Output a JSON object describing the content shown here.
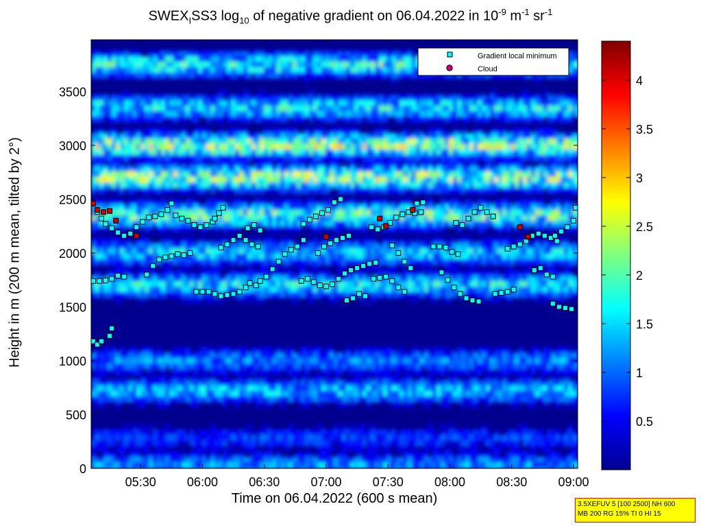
{
  "chart_data": {
    "type": "heatmap",
    "title": {
      "part1": "SWEX",
      "part1_sub": "I",
      "part2": "SS3 log",
      "part2_sub": "10",
      "part3": " of negative gradient on 06.04.2022 in 10",
      "exp1": "-9",
      "part4": " m",
      "exp2": "-1",
      "part5": " sr",
      "exp3": "-1"
    },
    "xlabel": "Time on 06.04.2022 (600 s mean)",
    "ylabel": "Height in m (200 m mean, tilted by 2°)",
    "x_ticks": [
      "05:30",
      "06:00",
      "06:30",
      "07:00",
      "07:30",
      "08:00",
      "08:30",
      "09:00"
    ],
    "x_tick_minutes": [
      330,
      360,
      390,
      420,
      450,
      480,
      510,
      540
    ],
    "xlim_minutes": [
      306,
      542
    ],
    "y_ticks": [
      0,
      500,
      1000,
      1500,
      2000,
      2500,
      3000,
      3500
    ],
    "ylim": [
      0,
      3980
    ],
    "colorbar": {
      "ticks": [
        0.5,
        1,
        1.5,
        2,
        2.5,
        3,
        3.5,
        4
      ],
      "tick_labels": [
        "0.5",
        "1",
        "1.5",
        "2",
        "2.5",
        "3",
        "3.5",
        "4"
      ],
      "range": [
        0,
        4.4
      ],
      "colormap": "jet"
    },
    "legend": {
      "placement": "top-right",
      "entries": [
        {
          "label": "Gradient local minimum",
          "color": "#00ffff",
          "marker": "square"
        },
        {
          "label": "Cloud",
          "color": "#ff0000",
          "marker": "circle"
        }
      ]
    },
    "field_bands": [
      {
        "height_m": 30,
        "level": 1.2
      },
      {
        "height_m": 280,
        "level": 0.8
      },
      {
        "height_m": 720,
        "level": 1.4
      },
      {
        "height_m": 1000,
        "level": 1.15
      },
      {
        "height_m": 1700,
        "level": 1.6
      },
      {
        "height_m": 2000,
        "level": 1.5
      },
      {
        "height_m": 2350,
        "level": 2.0
      },
      {
        "height_m": 2700,
        "level": 2.3
      },
      {
        "height_m": 3000,
        "level": 2.3
      },
      {
        "height_m": 3350,
        "level": 1.6
      },
      {
        "height_m": 3750,
        "level": 1.8
      }
    ],
    "minima_tracks": [
      {
        "points": [
          [
            307,
            1740
          ],
          [
            310,
            1740
          ],
          [
            313,
            1745
          ],
          [
            316,
            1760
          ],
          [
            319,
            1790
          ],
          [
            322,
            1780
          ]
        ]
      },
      {
        "points": [
          [
            307,
            1180
          ],
          [
            309,
            1150
          ],
          [
            311,
            1180
          ],
          [
            315,
            1230
          ],
          [
            316,
            1300
          ]
        ]
      },
      {
        "points": [
          [
            307,
            2460
          ],
          [
            309,
            2380
          ],
          [
            311,
            2320
          ],
          [
            313,
            2270
          ],
          [
            316,
            2230
          ],
          [
            319,
            2190
          ],
          [
            322,
            2160
          ],
          [
            325,
            2180
          ],
          [
            328,
            2240
          ],
          [
            331,
            2290
          ],
          [
            334,
            2330
          ],
          [
            337,
            2340
          ],
          [
            340,
            2360
          ],
          [
            343,
            2400
          ],
          [
            345,
            2460
          ]
        ]
      },
      {
        "points": [
          [
            333,
            1800
          ],
          [
            336,
            1880
          ],
          [
            339,
            1940
          ],
          [
            342,
            1960
          ],
          [
            345,
            1970
          ],
          [
            348,
            1990
          ],
          [
            351,
            1980
          ],
          [
            354,
            2000
          ]
        ]
      },
      {
        "points": [
          [
            347,
            2350
          ],
          [
            350,
            2320
          ],
          [
            353,
            2300
          ],
          [
            356,
            2260
          ],
          [
            359,
            2240
          ],
          [
            362,
            2260
          ],
          [
            365,
            2290
          ],
          [
            366,
            2320
          ],
          [
            368,
            2370
          ],
          [
            370,
            2420
          ]
        ]
      },
      {
        "points": [
          [
            357,
            1640
          ],
          [
            360,
            1640
          ],
          [
            363,
            1640
          ],
          [
            366,
            1620
          ],
          [
            369,
            1600
          ],
          [
            372,
            1610
          ],
          [
            375,
            1620
          ],
          [
            378,
            1640
          ],
          [
            381,
            1680
          ],
          [
            383,
            1720
          ]
        ]
      },
      {
        "points": [
          [
            369,
            2050
          ],
          [
            372,
            2080
          ],
          [
            375,
            2120
          ],
          [
            378,
            2160
          ],
          [
            381,
            2120
          ],
          [
            384,
            2080
          ],
          [
            387,
            2060
          ]
        ]
      },
      {
        "points": [
          [
            382,
            2230
          ],
          [
            385,
            2260
          ],
          [
            388,
            2210
          ]
        ]
      },
      {
        "points": [
          [
            386,
            1700
          ],
          [
            388,
            1740
          ],
          [
            391,
            1780
          ],
          [
            394,
            1850
          ],
          [
            397,
            1920
          ],
          [
            400,
            1990
          ],
          [
            403,
            2030
          ],
          [
            406,
            2060
          ],
          [
            409,
            2120
          ]
        ]
      },
      {
        "points": [
          [
            408,
            1740
          ],
          [
            411,
            1760
          ],
          [
            414,
            1730
          ],
          [
            417,
            1700
          ],
          [
            420,
            1690
          ],
          [
            423,
            1710
          ]
        ]
      },
      {
        "points": [
          [
            409,
            2270
          ],
          [
            412,
            2310
          ],
          [
            415,
            2340
          ],
          [
            418,
            2370
          ],
          [
            421,
            2400
          ],
          [
            424,
            2470
          ],
          [
            427,
            2500
          ]
        ]
      },
      {
        "points": [
          [
            416,
            2000
          ],
          [
            419,
            2060
          ],
          [
            422,
            2090
          ],
          [
            425,
            2120
          ],
          [
            428,
            2140
          ],
          [
            431,
            2160
          ]
        ]
      },
      {
        "points": [
          [
            426,
            1760
          ],
          [
            429,
            1810
          ],
          [
            432,
            1840
          ],
          [
            435,
            1860
          ],
          [
            438,
            1880
          ],
          [
            441,
            1900
          ],
          [
            444,
            1910
          ]
        ]
      },
      {
        "points": [
          [
            430,
            1560
          ],
          [
            433,
            1580
          ],
          [
            436,
            1620
          ],
          [
            439,
            1600
          ]
        ]
      },
      {
        "points": [
          [
            442,
            2240
          ],
          [
            445,
            2220
          ],
          [
            448,
            2240
          ],
          [
            451,
            2280
          ],
          [
            454,
            2330
          ],
          [
            457,
            2360
          ],
          [
            460,
            2380
          ],
          [
            463,
            2370
          ],
          [
            466,
            2380
          ]
        ]
      },
      {
        "points": [
          [
            443,
            1760
          ],
          [
            446,
            1770
          ],
          [
            449,
            1780
          ],
          [
            452,
            1740
          ],
          [
            455,
            1680
          ],
          [
            458,
            1640
          ]
        ]
      },
      {
        "points": [
          [
            452,
            2070
          ],
          [
            455,
            2000
          ],
          [
            458,
            1920
          ],
          [
            461,
            1860
          ]
        ]
      },
      {
        "points": [
          [
            464,
            2460
          ],
          [
            467,
            2470
          ]
        ]
      },
      {
        "points": [
          [
            472,
            2060
          ],
          [
            475,
            2060
          ],
          [
            478,
            2050
          ],
          [
            481,
            2010
          ],
          [
            484,
            1990
          ]
        ]
      },
      {
        "points": [
          [
            476,
            1820
          ],
          [
            479,
            1750
          ],
          [
            482,
            1680
          ],
          [
            485,
            1620
          ],
          [
            488,
            1580
          ],
          [
            491,
            1560
          ],
          [
            494,
            1550
          ]
        ]
      },
      {
        "points": [
          [
            483,
            2280
          ],
          [
            486,
            2260
          ],
          [
            489,
            2320
          ],
          [
            492,
            2380
          ],
          [
            495,
            2420
          ],
          [
            498,
            2380
          ],
          [
            501,
            2340
          ]
        ]
      },
      {
        "points": [
          [
            502,
            1620
          ],
          [
            505,
            1630
          ],
          [
            508,
            1640
          ],
          [
            511,
            1660
          ]
        ]
      },
      {
        "points": [
          [
            508,
            2040
          ],
          [
            511,
            2060
          ],
          [
            514,
            2080
          ],
          [
            517,
            2110
          ],
          [
            520,
            2160
          ],
          [
            523,
            2180
          ],
          [
            526,
            2160
          ],
          [
            529,
            2140
          ],
          [
            532,
            2110
          ]
        ]
      },
      {
        "points": [
          [
            521,
            1840
          ],
          [
            524,
            1860
          ],
          [
            527,
            1800
          ],
          [
            530,
            1780
          ]
        ]
      },
      {
        "points": [
          [
            530,
            1530
          ],
          [
            533,
            1500
          ],
          [
            536,
            1490
          ],
          [
            539,
            1480
          ]
        ]
      },
      {
        "points": [
          [
            531,
            2160
          ],
          [
            534,
            2200
          ],
          [
            537,
            2240
          ],
          [
            540,
            2300
          ],
          [
            541,
            2420
          ]
        ]
      }
    ],
    "cloud_points": [
      [
        307,
        2460
      ],
      [
        309,
        2400
      ],
      [
        312,
        2380
      ],
      [
        315,
        2390
      ],
      [
        318,
        2300
      ],
      [
        328,
        2160
      ],
      [
        446,
        2320
      ],
      [
        449,
        2250
      ],
      [
        462,
        2400
      ],
      [
        420,
        2150
      ],
      [
        518,
        2150
      ],
      [
        514,
        2240
      ]
    ]
  },
  "info_box": {
    "line1": "3.5XEFUV 5 [100 2500] NH 600",
    "line2": "MB 200 RG 15% TI 0 HI 15"
  }
}
